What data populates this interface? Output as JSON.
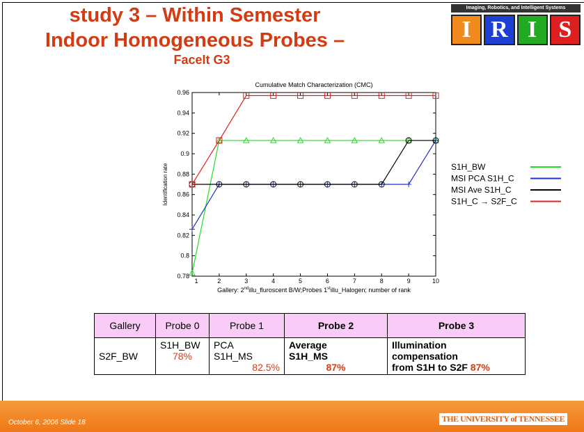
{
  "slide": {
    "title_lines": [
      "study 3 – Within Semester",
      "Indoor Homogeneous Probes –"
    ],
    "subtitle": "FaceIt G3",
    "logo": {
      "caption": "Imaging, Robotics, and Intelligent Systems",
      "letters": [
        "I",
        "R",
        "I",
        "S"
      ]
    },
    "footer": {
      "date": "October 6, 2006  Slide 18",
      "org": "THE UNIVERSITY of TENNESSEE"
    }
  },
  "chart_data": {
    "type": "line",
    "title": "Cumulative Match Characterization (CMC)",
    "ylabel": "Identification rate",
    "xlabel_parts": [
      "Gallery: 2",
      "nd",
      "illu_fluroscent B/W;Probes 1",
      "st",
      "illu_Halogen; number of rank"
    ],
    "x": [
      1,
      2,
      3,
      4,
      5,
      6,
      7,
      8,
      9,
      10
    ],
    "xlim": [
      1,
      10
    ],
    "xticks": [
      1,
      2,
      3,
      4,
      5,
      6,
      7,
      8,
      9,
      10
    ],
    "ylim": [
      0.78,
      0.96
    ],
    "yticks": [
      0.78,
      0.8,
      0.82,
      0.84,
      0.86,
      0.88,
      0.9,
      0.92,
      0.94,
      0.96
    ],
    "series": [
      {
        "name": "S1H_BW",
        "color": "#22dd22",
        "marker": "triangle",
        "values": [
          0.783,
          0.913,
          0.913,
          0.913,
          0.913,
          0.913,
          0.913,
          0.913,
          0.913,
          0.913
        ]
      },
      {
        "name": "MSI PCA S1H_C",
        "color": "#1f2fcc",
        "marker": "plus",
        "values": [
          0.826,
          0.87,
          0.87,
          0.87,
          0.87,
          0.87,
          0.87,
          0.87,
          0.87,
          0.913
        ]
      },
      {
        "name": "MSI Ave S1H_C",
        "color": "#000000",
        "marker": "circle",
        "values": [
          0.87,
          0.87,
          0.87,
          0.87,
          0.87,
          0.87,
          0.87,
          0.87,
          0.913,
          0.913
        ]
      },
      {
        "name": "S1H_C → S2F_C",
        "color": "#e02020",
        "marker": "square",
        "values": [
          0.87,
          0.913,
          0.957,
          0.957,
          0.957,
          0.957,
          0.957,
          0.957,
          0.957,
          0.957
        ]
      }
    ]
  },
  "table": {
    "header": [
      "Gallery",
      "Probe 0",
      "Probe 1",
      "Probe 2",
      "Probe 3"
    ],
    "rows": [
      [
        {
          "lines": [
            "S2F_BW"
          ]
        },
        {
          "lines": [
            "S1H_BW"
          ],
          "pct": "78%"
        },
        {
          "lines": [
            "PCA",
            "S1H_MS"
          ],
          "pct": "82.5%"
        },
        {
          "lines": [
            "Average",
            "S1H_MS"
          ],
          "pct": "87%"
        },
        {
          "lines": [
            "Illumination",
            "compensation",
            "from S1H to S2F"
          ],
          "pct": "87%"
        }
      ]
    ]
  }
}
